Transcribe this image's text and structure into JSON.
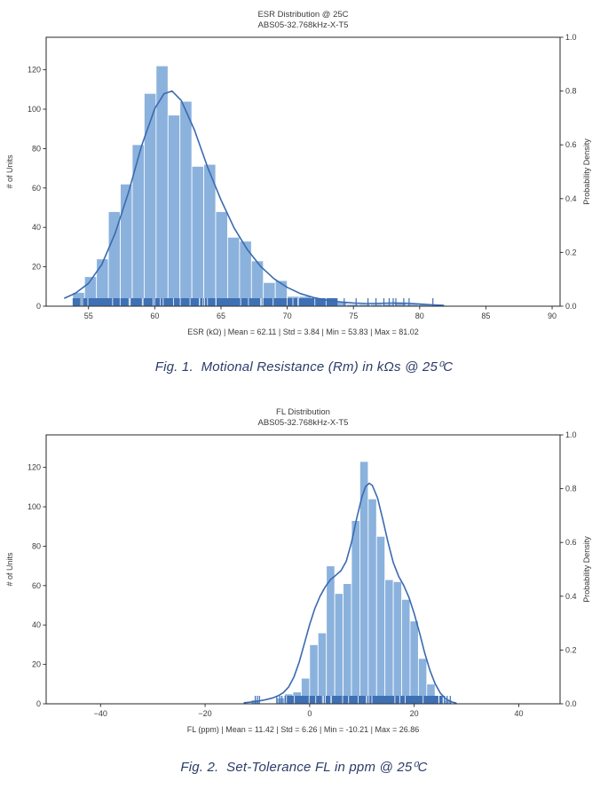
{
  "colors": {
    "bar_fill": "#8bb2dd",
    "bar_edge": "#ffffff",
    "kde_line": "#3a6ab1",
    "rug": "#3e70b5",
    "axis": "#262626",
    "tick_text": "#3a3a3a",
    "title_text": "#3a3a3a",
    "caption_text": "#2b3c68"
  },
  "chart_data": [
    {
      "type": "bar",
      "subtype": "histogram_kde_rug",
      "title": "ESR Distribution @ 25C",
      "subtitle": "ABS05-32.768kHz-X-T5",
      "xlabel": "ESR (kΩ)  |  Mean = 62.11  |  Std = 3.84  |  Min = 53.83  |  Max = 81.02",
      "ylabel_left": "# of Units",
      "ylabel_right": "Probability Density",
      "stats": {
        "mean": 62.11,
        "std": 3.84,
        "min": 53.83,
        "max": 81.02
      },
      "xlim": [
        51.8,
        90.6
      ],
      "y_units_max": 136.5,
      "xticks": {
        "values": [
          55,
          60,
          65,
          70,
          75,
          80,
          85,
          90
        ],
        "labels": [
          "55",
          "60",
          "65",
          "70",
          "75",
          "80",
          "85",
          "90"
        ]
      },
      "yticks_left": {
        "values": [
          0,
          20,
          40,
          60,
          80,
          100,
          120
        ],
        "labels": [
          "0",
          "20",
          "40",
          "60",
          "80",
          "100",
          "120"
        ]
      },
      "yticks_right": {
        "values": [
          0,
          0.2,
          0.4,
          0.6,
          0.8,
          1.0
        ],
        "labels": [
          "0.0",
          "0.2",
          "0.4",
          "0.6",
          "0.8",
          "1.0"
        ]
      },
      "bin_width": 0.9,
      "bins": [
        [
          53.8,
          7
        ],
        [
          54.7,
          15
        ],
        [
          55.6,
          24
        ],
        [
          56.5,
          48
        ],
        [
          57.4,
          62
        ],
        [
          58.3,
          82
        ],
        [
          59.2,
          108
        ],
        [
          60.1,
          122
        ],
        [
          61.0,
          97
        ],
        [
          61.9,
          104
        ],
        [
          62.8,
          71
        ],
        [
          63.7,
          72
        ],
        [
          64.6,
          48
        ],
        [
          65.5,
          35
        ],
        [
          66.4,
          33
        ],
        [
          67.3,
          23
        ],
        [
          68.2,
          12
        ],
        [
          69.1,
          13
        ],
        [
          70.0,
          5
        ],
        [
          70.9,
          5
        ],
        [
          71.8,
          3
        ],
        [
          72.7,
          3
        ],
        [
          73.6,
          2
        ],
        [
          74.5,
          1
        ],
        [
          75.4,
          1
        ],
        [
          76.3,
          1
        ],
        [
          77.2,
          1
        ],
        [
          78.1,
          2
        ],
        [
          79.0,
          1
        ],
        [
          79.9,
          1
        ],
        [
          80.8,
          1
        ]
      ],
      "kde": [
        [
          53.2,
          0.03
        ],
        [
          54,
          0.048
        ],
        [
          55,
          0.085
        ],
        [
          56,
          0.155
        ],
        [
          57,
          0.27
        ],
        [
          58,
          0.42
        ],
        [
          59,
          0.595
        ],
        [
          60,
          0.735
        ],
        [
          60.7,
          0.79
        ],
        [
          61.3,
          0.8
        ],
        [
          62,
          0.765
        ],
        [
          63,
          0.655
        ],
        [
          64,
          0.515
        ],
        [
          65,
          0.395
        ],
        [
          66,
          0.29
        ],
        [
          67,
          0.21
        ],
        [
          68,
          0.148
        ],
        [
          69,
          0.102
        ],
        [
          70,
          0.07
        ],
        [
          71,
          0.047
        ],
        [
          72,
          0.032
        ],
        [
          73,
          0.022
        ],
        [
          74,
          0.016
        ],
        [
          75,
          0.012
        ],
        [
          76,
          0.01
        ],
        [
          77,
          0.0105
        ],
        [
          78,
          0.012
        ],
        [
          79,
          0.011
        ],
        [
          80,
          0.008
        ],
        [
          81,
          0.005
        ],
        [
          81.8,
          0.003
        ]
      ],
      "rug_dense": [
        53.8,
        73.8
      ],
      "rug_outliers": [
        74.3,
        75.2,
        76.1,
        76.7,
        77.3,
        77.7,
        78.0,
        78.2,
        78.8,
        79.2,
        81.0
      ],
      "rug_seed": 41
    },
    {
      "type": "bar",
      "subtype": "histogram_kde_rug",
      "title": "FL Distribution",
      "subtitle": "ABS05-32.768kHz-X-T5",
      "xlabel": "FL (ppm)  |  Mean = 11.42  |  Std = 6.26  |  Min = -10.21  |  Max = 26.86",
      "ylabel_left": "# of Units",
      "ylabel_right": "Probability Density",
      "stats": {
        "mean": 11.42,
        "std": 6.26,
        "min": -10.21,
        "max": 26.86
      },
      "xlim": [
        -50.4,
        47.9
      ],
      "y_units_max": 136.5,
      "xticks": {
        "values": [
          -40,
          -20,
          0,
          20,
          40
        ],
        "labels": [
          "−40",
          "−20",
          "0",
          "20",
          "40"
        ]
      },
      "yticks_left": {
        "values": [
          0,
          20,
          40,
          60,
          80,
          100,
          120
        ],
        "labels": [
          "0",
          "20",
          "40",
          "60",
          "80",
          "100",
          "120"
        ]
      },
      "yticks_right": {
        "values": [
          0,
          0.2,
          0.4,
          0.6,
          0.8,
          1.0
        ],
        "labels": [
          "0.0",
          "0.2",
          "0.4",
          "0.6",
          "0.8",
          "1.0"
        ]
      },
      "bin_width": 1.6,
      "bins": [
        [
          -11.2,
          2
        ],
        [
          -6.4,
          3
        ],
        [
          -4.8,
          5
        ],
        [
          -3.2,
          6
        ],
        [
          -1.6,
          13
        ],
        [
          0,
          30
        ],
        [
          1.6,
          36
        ],
        [
          3.2,
          70
        ],
        [
          4.8,
          56
        ],
        [
          6.4,
          61
        ],
        [
          8.0,
          93
        ],
        [
          9.6,
          123
        ],
        [
          11.2,
          104
        ],
        [
          12.8,
          85
        ],
        [
          14.4,
          63
        ],
        [
          16.0,
          62
        ],
        [
          17.6,
          53
        ],
        [
          19.2,
          42
        ],
        [
          20.8,
          23
        ],
        [
          22.4,
          10
        ],
        [
          24.0,
          4
        ],
        [
          25.6,
          2
        ]
      ],
      "kde": [
        [
          -12.5,
          0.004
        ],
        [
          -11,
          0.007
        ],
        [
          -10,
          0.01
        ],
        [
          -9,
          0.013
        ],
        [
          -8,
          0.017
        ],
        [
          -7,
          0.022
        ],
        [
          -6,
          0.03
        ],
        [
          -5,
          0.042
        ],
        [
          -4,
          0.063
        ],
        [
          -3,
          0.1
        ],
        [
          -2,
          0.155
        ],
        [
          -1,
          0.225
        ],
        [
          0,
          0.295
        ],
        [
          1,
          0.355
        ],
        [
          2,
          0.4
        ],
        [
          3,
          0.435
        ],
        [
          4,
          0.462
        ],
        [
          5,
          0.478
        ],
        [
          6,
          0.495
        ],
        [
          7,
          0.53
        ],
        [
          8,
          0.6
        ],
        [
          9,
          0.69
        ],
        [
          10,
          0.77
        ],
        [
          10.7,
          0.808
        ],
        [
          11.4,
          0.82
        ],
        [
          12,
          0.812
        ],
        [
          13,
          0.765
        ],
        [
          14,
          0.685
        ],
        [
          15,
          0.6
        ],
        [
          16,
          0.525
        ],
        [
          17,
          0.475
        ],
        [
          18,
          0.44
        ],
        [
          19,
          0.395
        ],
        [
          20,
          0.335
        ],
        [
          21,
          0.265
        ],
        [
          22,
          0.19
        ],
        [
          23,
          0.125
        ],
        [
          24,
          0.075
        ],
        [
          25,
          0.04
        ],
        [
          26,
          0.019
        ],
        [
          27,
          0.008
        ],
        [
          28,
          0.003
        ]
      ],
      "rug_dense": [
        -4.8,
        25.4
      ],
      "rug_outliers": [
        -10.4,
        -10.0,
        -9.6,
        -6.3,
        -5.7,
        -5.3,
        25.8,
        26.3,
        26.9
      ],
      "rug_seed": 7
    }
  ],
  "captions": [
    {
      "text": "Fig. 1.  Motional Resistance (Rm) in kΩs @ 25⁰C"
    },
    {
      "text": "Fig. 2.  Set-Tolerance FL in ppm @ 25⁰C"
    }
  ]
}
